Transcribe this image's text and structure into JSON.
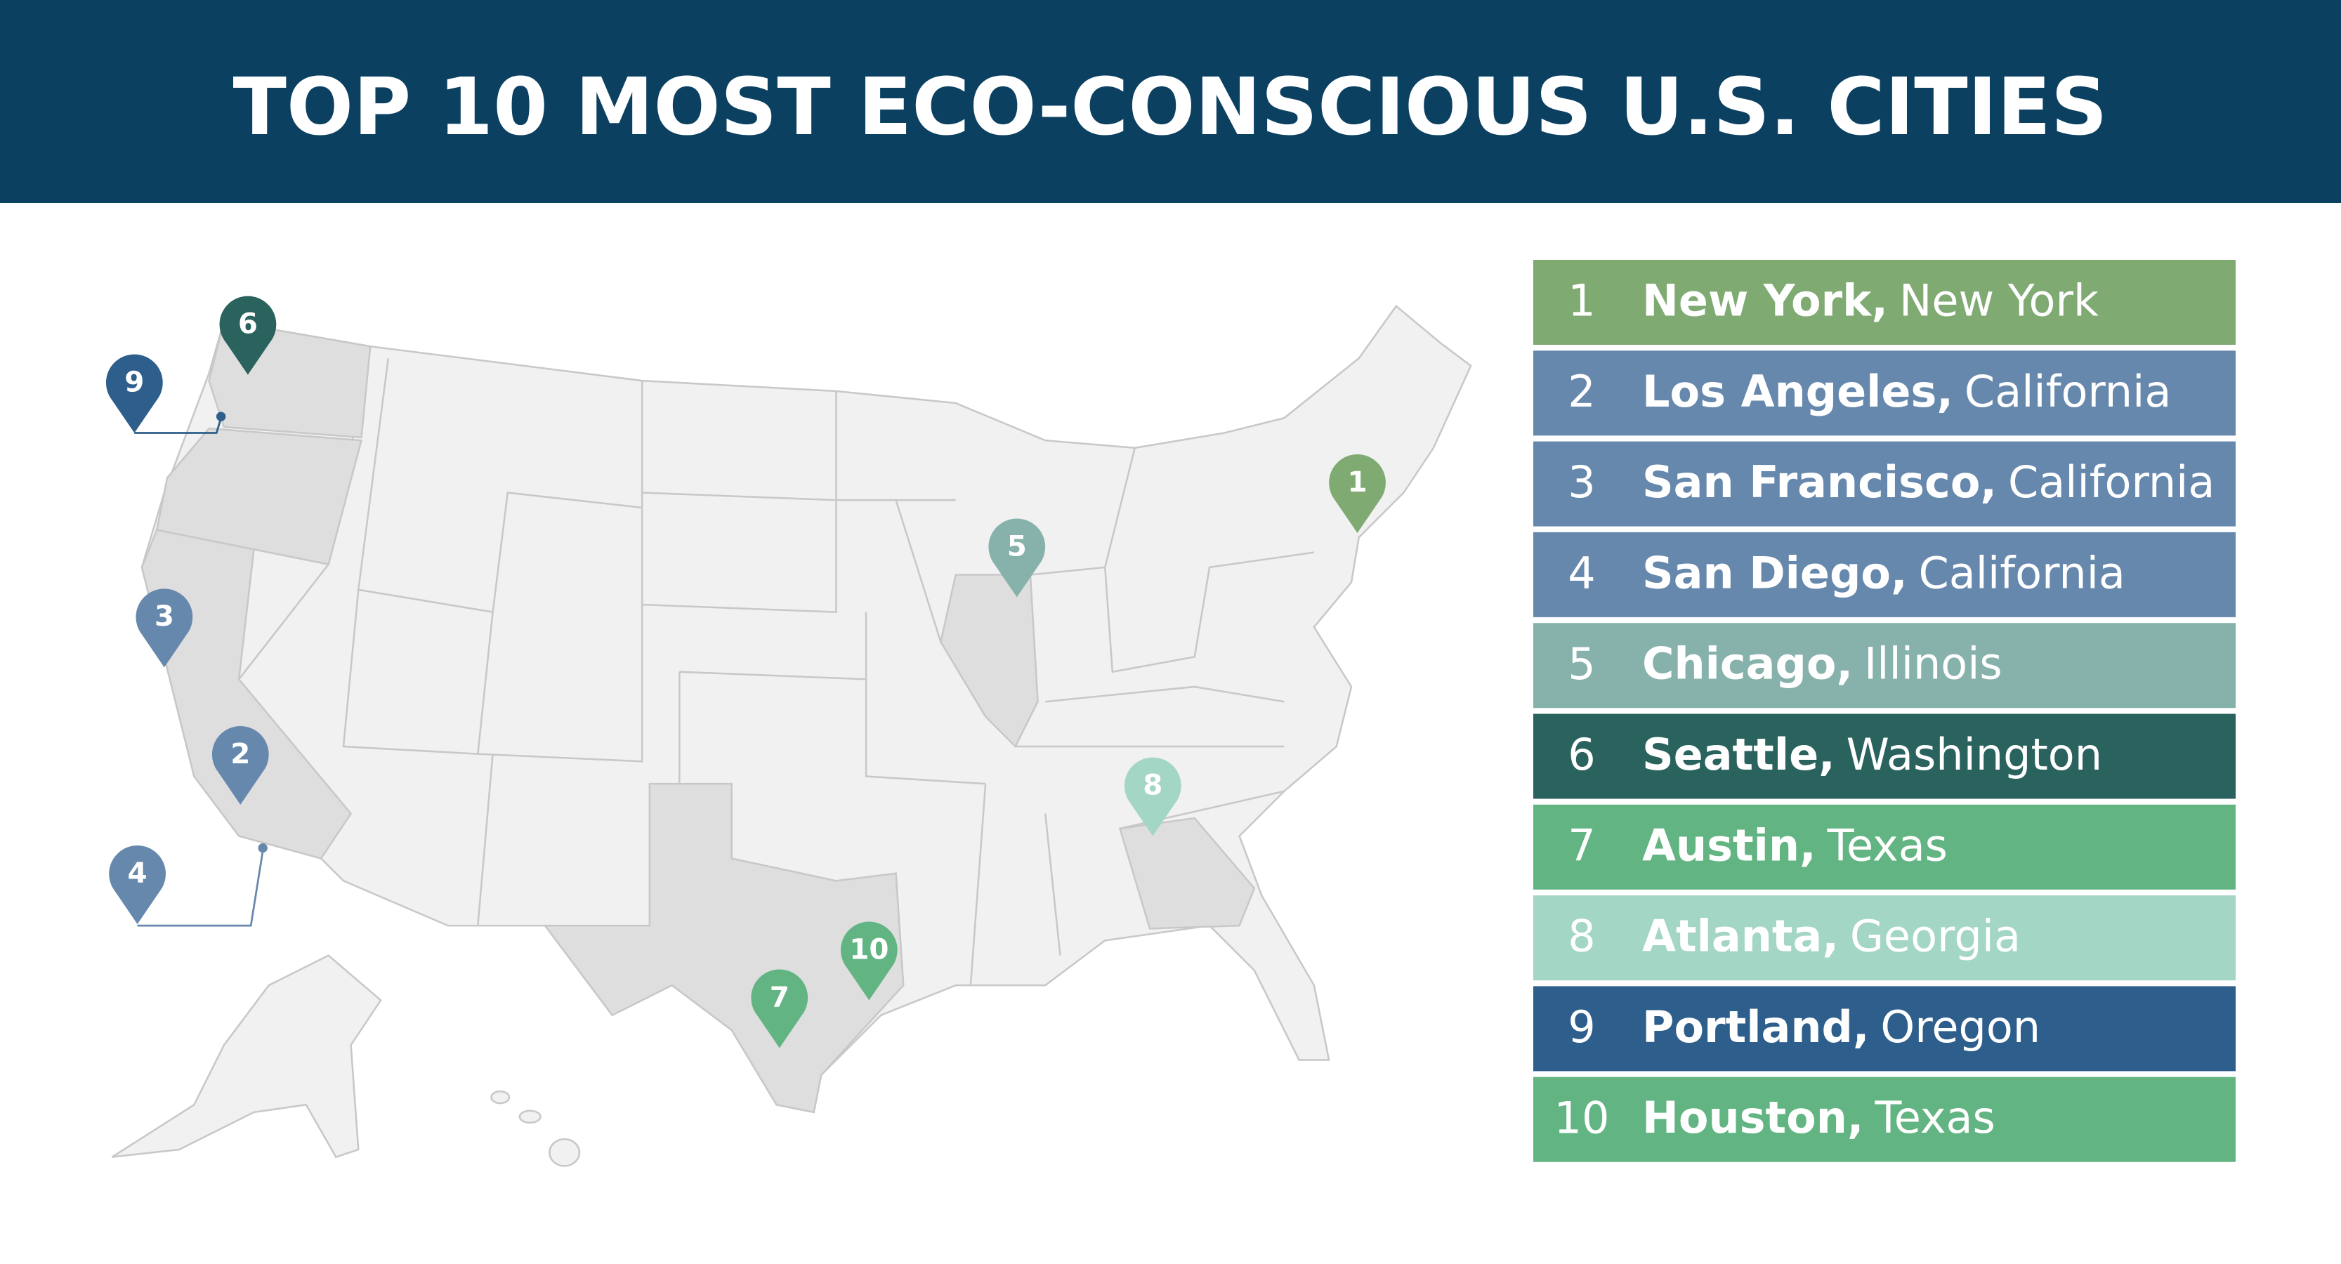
{
  "header": {
    "title": "TOP 10 MOST ECO-CONSCIOUS U.S. CITIES"
  },
  "cities": [
    {
      "rank": "1",
      "city": "New York,",
      "state": "New York",
      "color": "#7faa72"
    },
    {
      "rank": "2",
      "city": "Los Angeles,",
      "state": "California",
      "color": "#6788ad"
    },
    {
      "rank": "3",
      "city": "San Francisco,",
      "state": "California",
      "color": "#6788ad"
    },
    {
      "rank": "4",
      "city": "San Diego,",
      "state": "California",
      "color": "#6788ad"
    },
    {
      "rank": "5",
      "city": "Chicago,",
      "state": "Illinois",
      "color": "#86b2ab"
    },
    {
      "rank": "6",
      "city": "Seattle,",
      "state": "Washington",
      "color": "#2a625e"
    },
    {
      "rank": "7",
      "city": "Austin,",
      "state": "Texas",
      "color": "#62b582"
    },
    {
      "rank": "8",
      "city": "Atlanta,",
      "state": "Georgia",
      "color": "#a3d6c4"
    },
    {
      "rank": "9",
      "city": "Portland,",
      "state": "Oregon",
      "color": "#2e5e8b"
    },
    {
      "rank": "10",
      "city": "Houston,",
      "state": "Texas",
      "color": "#62b582"
    }
  ]
}
